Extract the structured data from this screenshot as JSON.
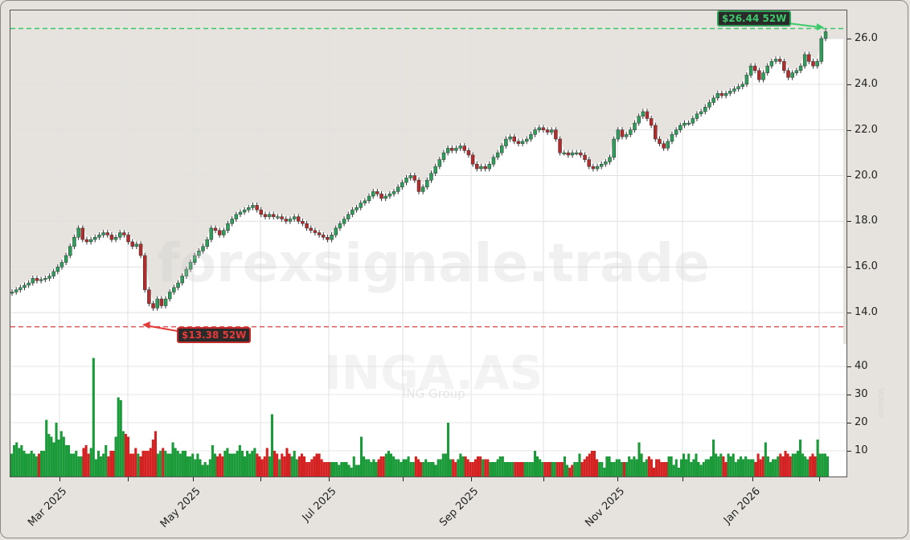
{
  "chart_data": {
    "type": "candlestick",
    "ticker": "INGA.AS",
    "company": "ING Group",
    "watermark": "forexsignale.trade",
    "price_axis": {
      "ticks": [
        14.0,
        16.0,
        18.0,
        20.0,
        22.0,
        24.0,
        26.0
      ],
      "tick_labels": [
        "14.0",
        "16.0",
        "18.0",
        "20.0",
        "22.0",
        "24.0",
        "26.0"
      ],
      "ylim": [
        12.8,
        27.3
      ]
    },
    "volume_axis": {
      "label": "Volume",
      "ticks": [
        10,
        20,
        30,
        40
      ],
      "tick_labels": [
        "10",
        "20",
        "30",
        "40"
      ],
      "ylim": [
        0,
        43
      ]
    },
    "x_axis": {
      "tick_labels": [
        "Mar 2025",
        "May 2025",
        "Jul 2025",
        "Sep 2025",
        "Nov 2025",
        "Jan 2026"
      ],
      "labeled_tick_x": [
        73,
        239,
        408,
        585,
        767,
        935
      ],
      "minor_tick_x": [
        158,
        323,
        500,
        675,
        848,
        1018
      ]
    },
    "annotations": {
      "high_52w": {
        "value": 26.44,
        "label": "$26.44 52W",
        "color": "#3ec96b"
      },
      "low_52w": {
        "value": 13.38,
        "label": "$13.38 52W",
        "color": "#e33b3b"
      }
    },
    "colors": {
      "up": "#1a9a38",
      "down": "#d42121",
      "candle_up": "#2e9e5b",
      "candle_down": "#b52b2b",
      "fill_above": "#e6e3de"
    },
    "closes": [
      14.9,
      15.0,
      15.1,
      15.2,
      15.3,
      15.5,
      15.4,
      15.45,
      15.5,
      15.6,
      15.8,
      16.0,
      16.2,
      16.5,
      16.9,
      17.3,
      17.7,
      17.2,
      17.1,
      17.2,
      17.3,
      17.4,
      17.5,
      17.4,
      17.2,
      17.3,
      17.5,
      17.4,
      17.1,
      16.9,
      17.0,
      16.5,
      15.0,
      14.4,
      14.2,
      14.6,
      14.3,
      14.6,
      14.9,
      15.1,
      15.3,
      15.6,
      15.9,
      16.2,
      16.5,
      16.7,
      16.9,
      17.2,
      17.7,
      17.6,
      17.4,
      17.6,
      17.9,
      18.1,
      18.3,
      18.4,
      18.5,
      18.6,
      18.7,
      18.5,
      18.3,
      18.2,
      18.3,
      18.2,
      18.2,
      18.1,
      18.0,
      18.1,
      18.2,
      18.0,
      17.9,
      17.7,
      17.6,
      17.5,
      17.4,
      17.3,
      17.2,
      17.4,
      17.7,
      17.9,
      18.1,
      18.3,
      18.5,
      18.6,
      18.8,
      18.9,
      19.1,
      19.3,
      19.2,
      19.0,
      19.1,
      19.2,
      19.3,
      19.5,
      19.7,
      19.9,
      20.0,
      19.8,
      19.3,
      19.5,
      19.8,
      20.1,
      20.4,
      20.7,
      21.0,
      21.2,
      21.1,
      21.2,
      21.3,
      21.1,
      20.9,
      20.5,
      20.3,
      20.4,
      20.3,
      20.5,
      20.8,
      21.0,
      21.3,
      21.6,
      21.7,
      21.5,
      21.4,
      21.5,
      21.6,
      21.8,
      22.0,
      22.1,
      22.0,
      21.9,
      22.0,
      21.6,
      21.0,
      21.0,
      20.9,
      21.0,
      21.0,
      20.9,
      20.7,
      20.4,
      20.3,
      20.4,
      20.5,
      20.6,
      20.8,
      21.6,
      22.0,
      21.7,
      21.8,
      22.0,
      22.3,
      22.6,
      22.8,
      22.5,
      22.2,
      21.6,
      21.4,
      21.2,
      21.5,
      21.8,
      22.0,
      22.2,
      22.3,
      22.3,
      22.5,
      22.7,
      22.8,
      23.0,
      23.2,
      23.4,
      23.6,
      23.5,
      23.6,
      23.7,
      23.8,
      23.9,
      24.0,
      24.4,
      24.8,
      24.6,
      24.2,
      24.5,
      24.8,
      25.0,
      25.1,
      25.0,
      24.6,
      24.3,
      24.5,
      24.6,
      24.8,
      25.3,
      25.0,
      24.8,
      25.0,
      26.0,
      26.3
    ],
    "volumes_millions": [
      9,
      12,
      13,
      11,
      12,
      10,
      9,
      9,
      10,
      9,
      8,
      9,
      10,
      10,
      21,
      16,
      15,
      13,
      20,
      14,
      17,
      15,
      12,
      12,
      9,
      9,
      10,
      8,
      8,
      11,
      12,
      9,
      11,
      43,
      7,
      10,
      8,
      9,
      12,
      8,
      10,
      10,
      15,
      29,
      28,
      17,
      16,
      15,
      9,
      9,
      11,
      9,
      8,
      10,
      10,
      10,
      11,
      14,
      17,
      9,
      10,
      11,
      10,
      9,
      9,
      13,
      11,
      10,
      9,
      10,
      10,
      8,
      8,
      9,
      7,
      9,
      7,
      5,
      6,
      5,
      7,
      12,
      9,
      8,
      9,
      8,
      10,
      11,
      9,
      9,
      9,
      10,
      12,
      10,
      8,
      10,
      9,
      10,
      11,
      9,
      8,
      7,
      8,
      11,
      8,
      23,
      10,
      9,
      7,
      9,
      8,
      11,
      9,
      8,
      10,
      7,
      8,
      9,
      8,
      6,
      6,
      7,
      8,
      9,
      9,
      7,
      6,
      6,
      6,
      6,
      6,
      6,
      5,
      6,
      6,
      6,
      5,
      4,
      8,
      5,
      5,
      15,
      8,
      7,
      7,
      6,
      7,
      6,
      7,
      8,
      8,
      9,
      10,
      9,
      8,
      7,
      7,
      6,
      7,
      7,
      8,
      6,
      6,
      8,
      7,
      6,
      6,
      7,
      6,
      6,
      6,
      5,
      7,
      7,
      9,
      9,
      20,
      7,
      7,
      6,
      7,
      9,
      8,
      8,
      7,
      6,
      6,
      7,
      8,
      8,
      7,
      7,
      7,
      6,
      6,
      6,
      7,
      8,
      8,
      6,
      6,
      6,
      6,
      6,
      6,
      6,
      6,
      6,
      6,
      6,
      6,
      10,
      8,
      7,
      6,
      6,
      6,
      6,
      6,
      6,
      6,
      6,
      6,
      8,
      5,
      4,
      5,
      6,
      6,
      9,
      6,
      7,
      8,
      9,
      10,
      10,
      7,
      6,
      6,
      4,
      8,
      8,
      6,
      6,
      7,
      7,
      6,
      6,
      6,
      8,
      7,
      8,
      7,
      13,
      9,
      6,
      7,
      8,
      7,
      4,
      7,
      7,
      6,
      6,
      6,
      8,
      8,
      5,
      7,
      4,
      7,
      9,
      7,
      9,
      6,
      7,
      9,
      6,
      5,
      6,
      7,
      7,
      8,
      14,
      9,
      8,
      9,
      8,
      6,
      9,
      8,
      9,
      6,
      7,
      8,
      7,
      8,
      7,
      7,
      7,
      6,
      9,
      7,
      8,
      13,
      8,
      6,
      7,
      7,
      8,
      9,
      8,
      10,
      9,
      8,
      9,
      9,
      10,
      14,
      9,
      8,
      7,
      8,
      9,
      8,
      14,
      9,
      9,
      9,
      8
    ]
  },
  "window": {
    "title": "INGA.AS"
  }
}
